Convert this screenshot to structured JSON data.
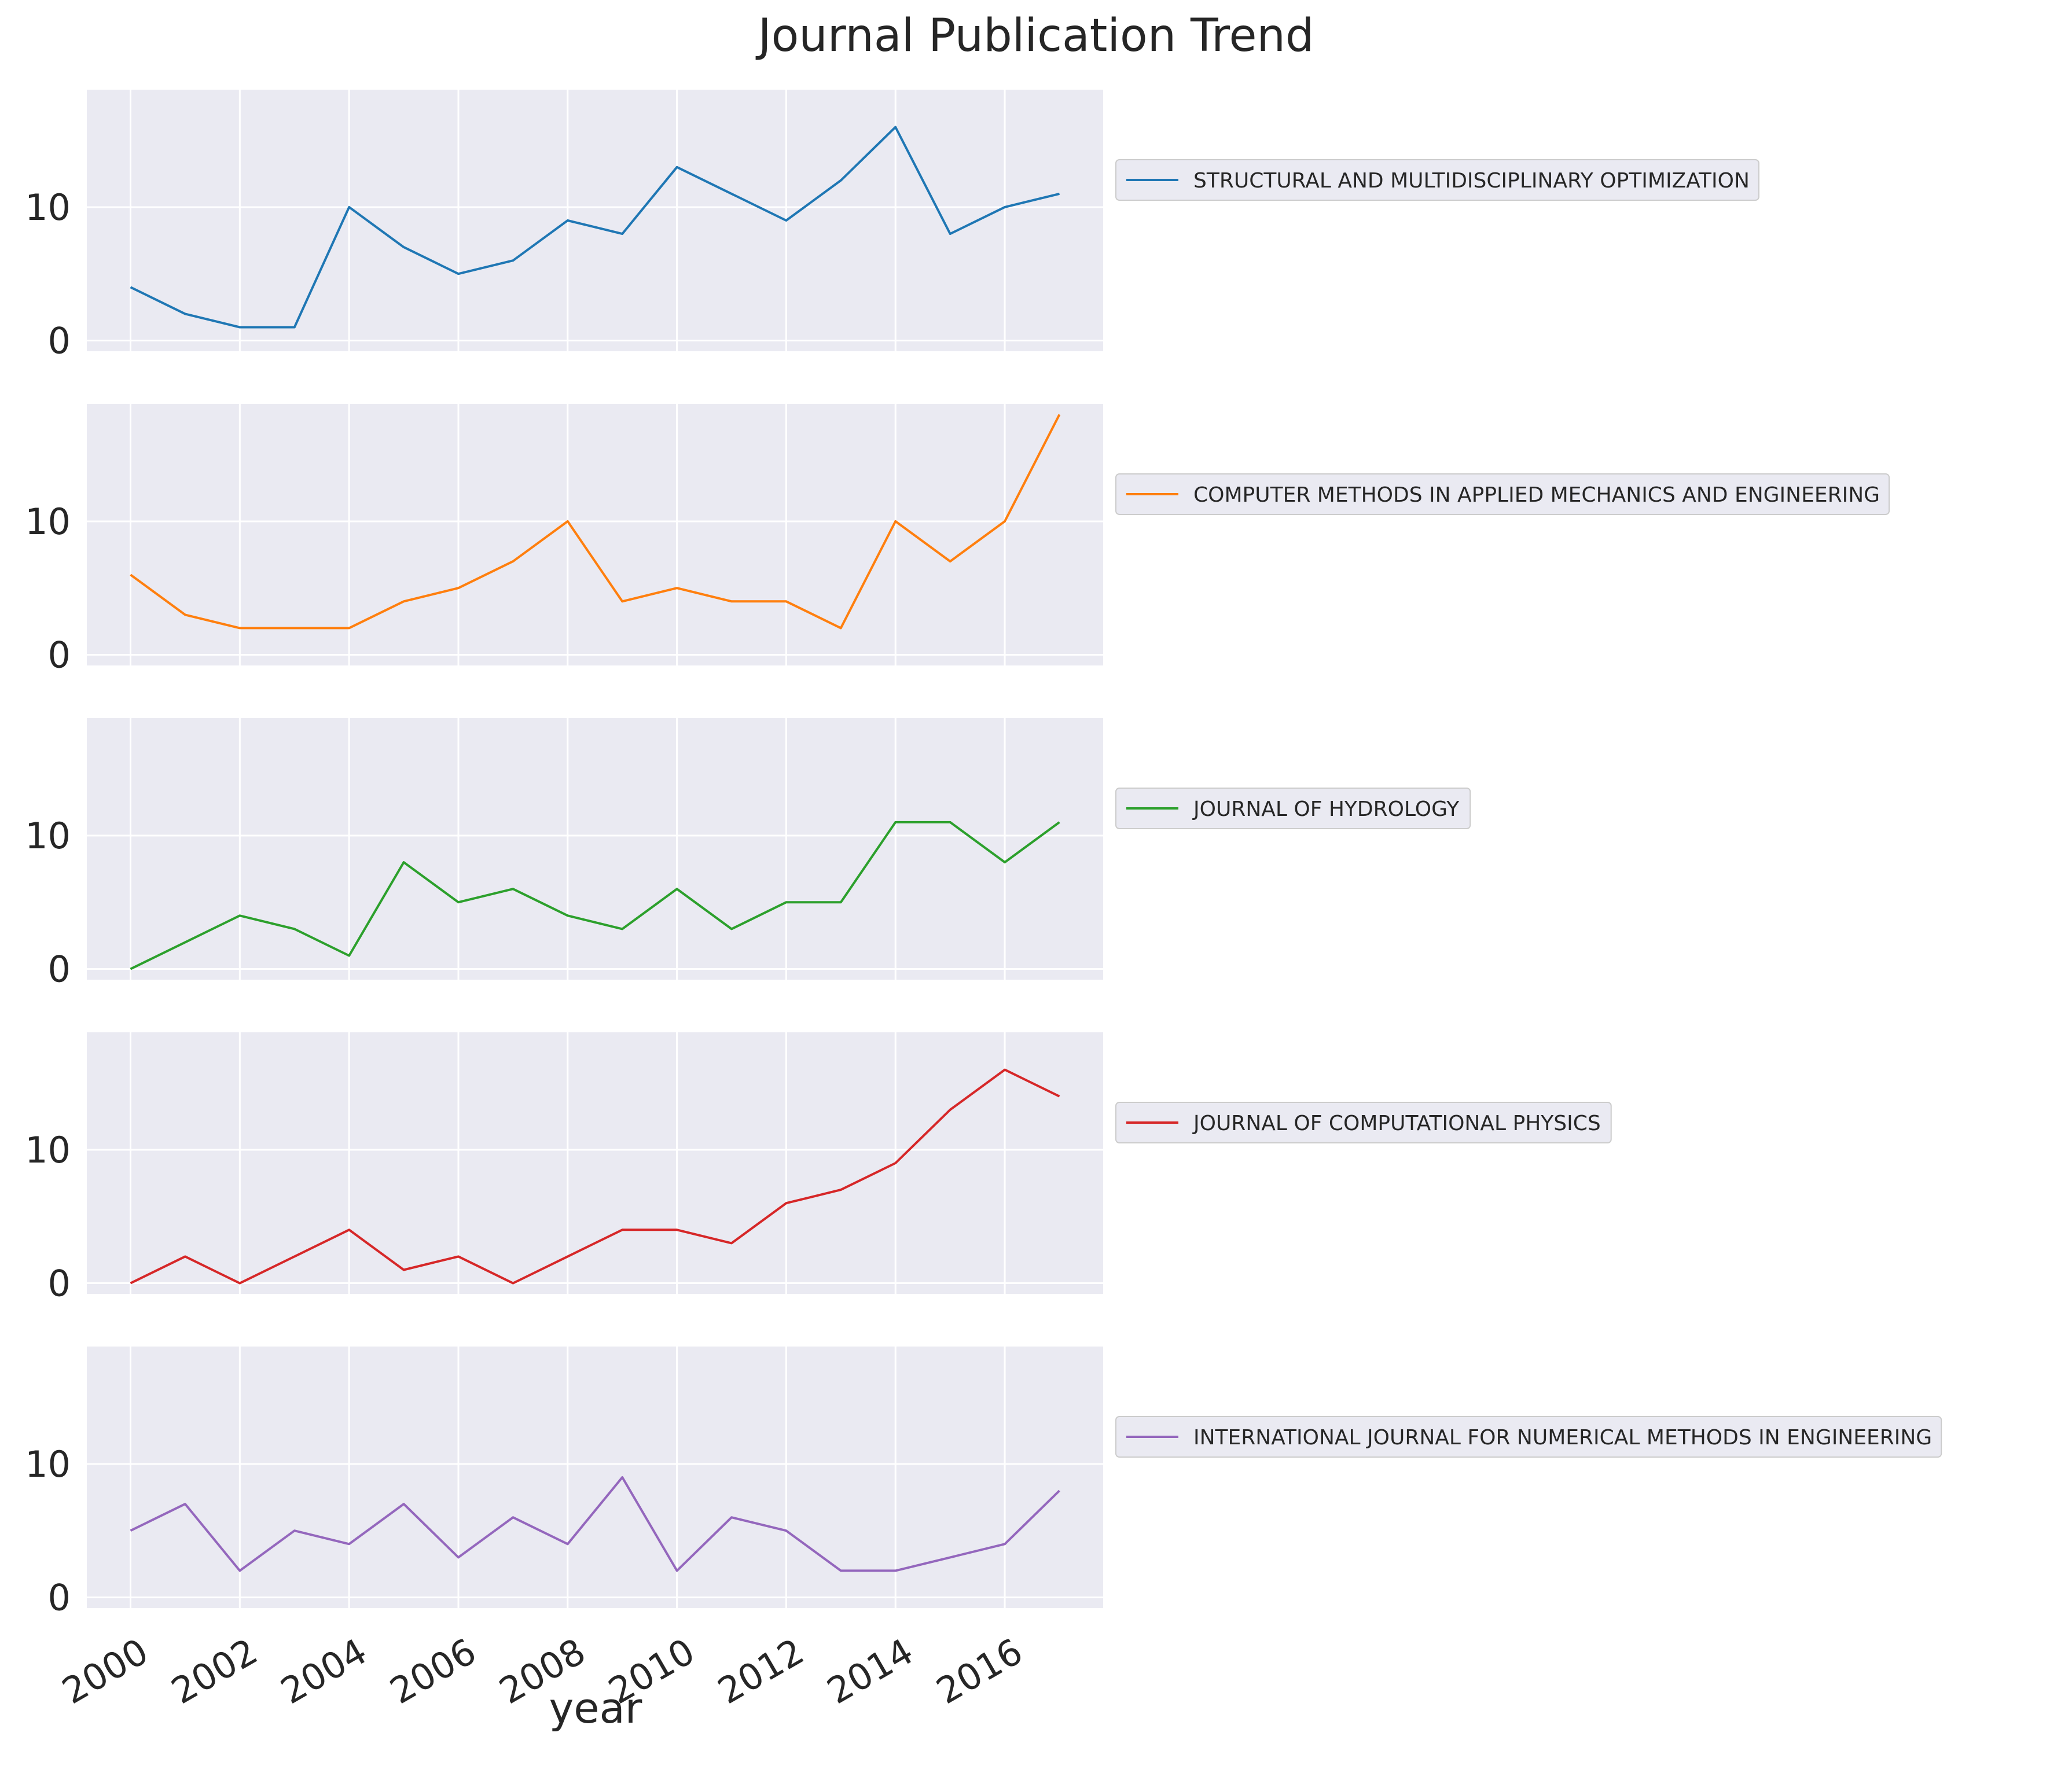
{
  "chart_data": {
    "type": "line",
    "title": "Journal Publication Trend",
    "xlabel": "year",
    "ylabel": "",
    "x": [
      2000,
      2001,
      2002,
      2003,
      2004,
      2005,
      2006,
      2007,
      2008,
      2009,
      2010,
      2011,
      2012,
      2013,
      2014,
      2015,
      2016,
      2017
    ],
    "xticks": [
      2000,
      2002,
      2004,
      2006,
      2008,
      2010,
      2012,
      2014,
      2016
    ],
    "xtick_labels": [
      "2000",
      "2002",
      "2004",
      "2006",
      "2008",
      "2010",
      "2012",
      "2014",
      "2016"
    ],
    "xlim": [
      1999.2,
      2017.8
    ],
    "yticks": [
      0,
      10
    ],
    "ytick_labels": [
      "0",
      "10"
    ],
    "ylim": [
      -0.8,
      18.8
    ],
    "grid": true,
    "legend_placement": "right of each panel",
    "shared_axes": true,
    "background_color": "#eaeaf2",
    "grid_color": "#ffffff",
    "series": [
      {
        "name": "STRUCTURAL AND MULTIDISCIPLINARY OPTIMIZATION",
        "color": "#1f77b4",
        "values": [
          4,
          2,
          1,
          1,
          10,
          7,
          5,
          6,
          9,
          8,
          13,
          11,
          9,
          12,
          16,
          8,
          10,
          11
        ]
      },
      {
        "name": "COMPUTER METHODS IN APPLIED MECHANICS AND ENGINEERING",
        "color": "#ff7f0e",
        "values": [
          6,
          3,
          2,
          2,
          2,
          4,
          5,
          7,
          10,
          4,
          5,
          4,
          4,
          2,
          10,
          7,
          10,
          18
        ]
      },
      {
        "name": "JOURNAL OF HYDROLOGY",
        "color": "#2ca02c",
        "values": [
          0,
          2,
          4,
          3,
          1,
          8,
          5,
          6,
          4,
          3,
          6,
          3,
          5,
          5,
          11,
          11,
          8,
          11
        ]
      },
      {
        "name": "JOURNAL OF COMPUTATIONAL PHYSICS",
        "color": "#d62728",
        "values": [
          0,
          2,
          0,
          2,
          4,
          1,
          2,
          0,
          2,
          4,
          4,
          3,
          6,
          7,
          9,
          13,
          16,
          14
        ]
      },
      {
        "name": "INTERNATIONAL JOURNAL FOR NUMERICAL METHODS IN ENGINEERING",
        "color": "#9467bd",
        "values": [
          5,
          7,
          2,
          5,
          4,
          7,
          3,
          6,
          4,
          9,
          2,
          6,
          5,
          2,
          2,
          3,
          4,
          8
        ]
      }
    ]
  }
}
